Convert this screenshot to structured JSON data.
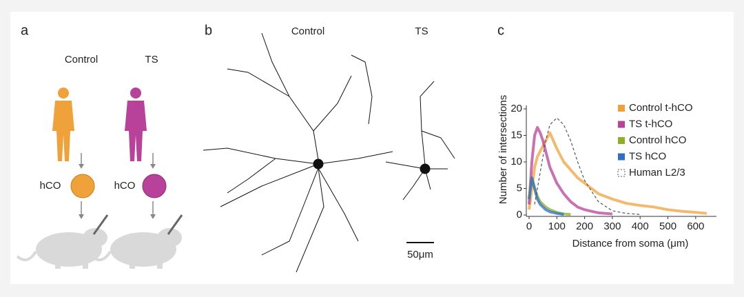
{
  "panel_a": {
    "label": "a",
    "groups": [
      {
        "name": "Control",
        "organoid": "hCO"
      },
      {
        "name": "TS",
        "organoid": "hCO"
      }
    ]
  },
  "panel_b": {
    "label": "b",
    "neurons": [
      "Control",
      "TS"
    ],
    "scale_bar": "50μm"
  },
  "chart_data": {
    "type": "line",
    "label": "c",
    "xlabel": "Distance from soma (μm)",
    "ylabel": "Number of intersections",
    "xlim": [
      0,
      650
    ],
    "ylim": [
      0,
      20
    ],
    "xticks": [
      0,
      100,
      200,
      300,
      400,
      500,
      600
    ],
    "yticks": [
      0,
      5,
      10,
      15,
      20
    ],
    "x": [
      0,
      10,
      20,
      30,
      40,
      50,
      60,
      75,
      100,
      125,
      150,
      175,
      200,
      250,
      300,
      350,
      400,
      450,
      500,
      550,
      600,
      640
    ],
    "series": [
      {
        "name": "Control t-hCO",
        "color": "#f0a23a",
        "values": [
          1,
          5,
          9,
          11,
          12,
          13,
          14,
          15.5,
          12.5,
          10,
          8.5,
          7,
          6,
          4,
          3,
          2.2,
          1.8,
          1.5,
          1,
          0.7,
          0.5,
          0.3
        ]
      },
      {
        "name": "TS t-hCO",
        "color": "#b8419a",
        "values": [
          2,
          10,
          15,
          16.5,
          15.5,
          14,
          12,
          9,
          6,
          4,
          2.5,
          1.5,
          1,
          0.4,
          0.2,
          null,
          null,
          null,
          null,
          null,
          null,
          null
        ]
      },
      {
        "name": "Control hCO",
        "color": "#8fae2a",
        "values": [
          3,
          7,
          5,
          3.5,
          2.5,
          2,
          1.5,
          1,
          0.5,
          0.2,
          0.1,
          null,
          null,
          null,
          null,
          null,
          null,
          null,
          null,
          null,
          null,
          null
        ]
      },
      {
        "name": "TS hCO",
        "color": "#2f6fc4",
        "values": [
          3,
          7,
          5,
          3,
          2,
          1.5,
          1,
          0.6,
          0.3,
          0.1,
          null,
          null,
          null,
          null,
          null,
          null,
          null,
          null,
          null,
          null,
          null,
          null
        ]
      },
      {
        "name": "Human L2/3",
        "color": "#555555",
        "style": "dashed",
        "values": [
          null,
          null,
          2,
          5,
          8,
          11,
          14,
          17,
          18.3,
          17,
          14,
          10,
          6.5,
          2.5,
          0.8,
          0.3,
          0.1,
          null,
          null,
          null,
          null,
          null
        ]
      }
    ]
  }
}
